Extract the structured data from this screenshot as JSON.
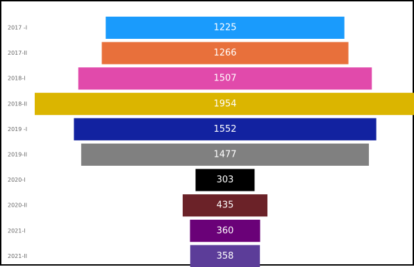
{
  "chart_data": {
    "type": "bar",
    "subtype": "funnel",
    "title": "",
    "xlabel": "",
    "ylabel": "",
    "categories": [
      "2017 -I",
      "2017-II",
      "2018-I",
      "2018-II",
      "2019 -I",
      "2019-II",
      "2020-I",
      "2020-II",
      "2021-I",
      "2021-II"
    ],
    "values": [
      1225,
      1266,
      1507,
      1954,
      1552,
      1477,
      303,
      435,
      360,
      358
    ],
    "colors": [
      "#1a9bfc",
      "#e8703b",
      "#e14aab",
      "#dbb500",
      "#1222a0",
      "#808080",
      "#000000",
      "#6b2228",
      "#6a0178",
      "#5c3d99"
    ],
    "grid": false,
    "legend": "none"
  }
}
